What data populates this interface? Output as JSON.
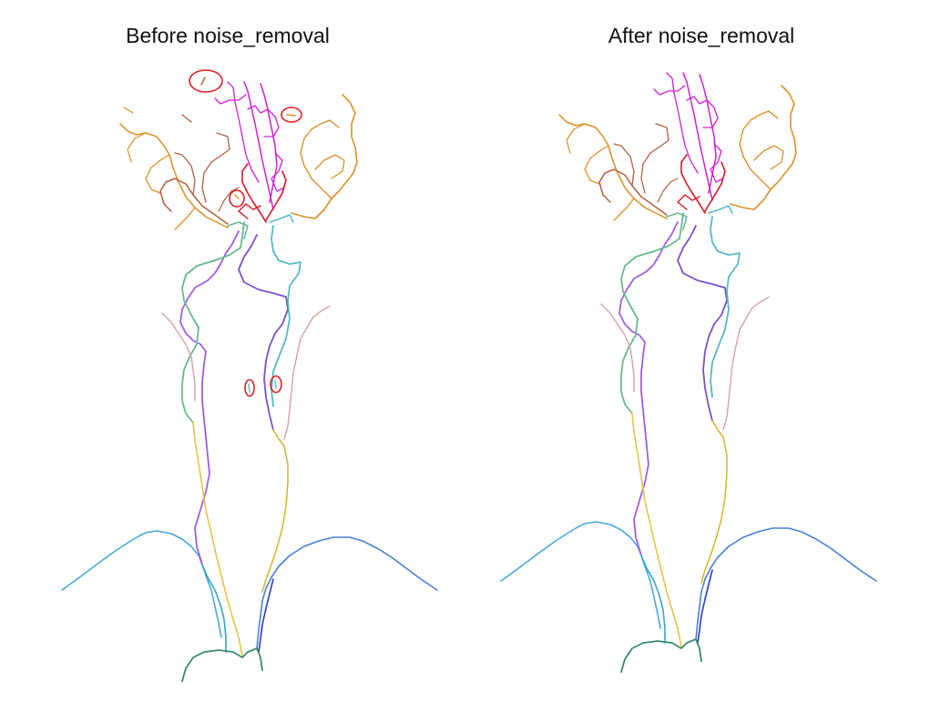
{
  "panels": [
    {
      "id": "before",
      "title": "Before noise_removal",
      "shows_noise": true
    },
    {
      "id": "after",
      "title": "After noise_removal",
      "shows_noise": false
    }
  ],
  "colors": {
    "shoulder_left": "#4aa8d8",
    "shoulder_right": "#4a7fd4",
    "carotid_left": "#a05ee0",
    "vertebral_left": "#6ab890",
    "carotid_right": "#58b8c8",
    "vertebral_right": "#7a52c8",
    "yellow_left": "#e6c44a",
    "yellow_right": "#d8b838",
    "pink_branch": "#d8a0a8",
    "teal_lower": "#38a8c0",
    "dark_green": "#3a8a6a",
    "navy": "#2a3ac0",
    "magenta": "#d020d0",
    "red": "#d81828",
    "orange": "#d9912a",
    "brown": "#b06040",
    "noise_circle": "#e02020"
  }
}
